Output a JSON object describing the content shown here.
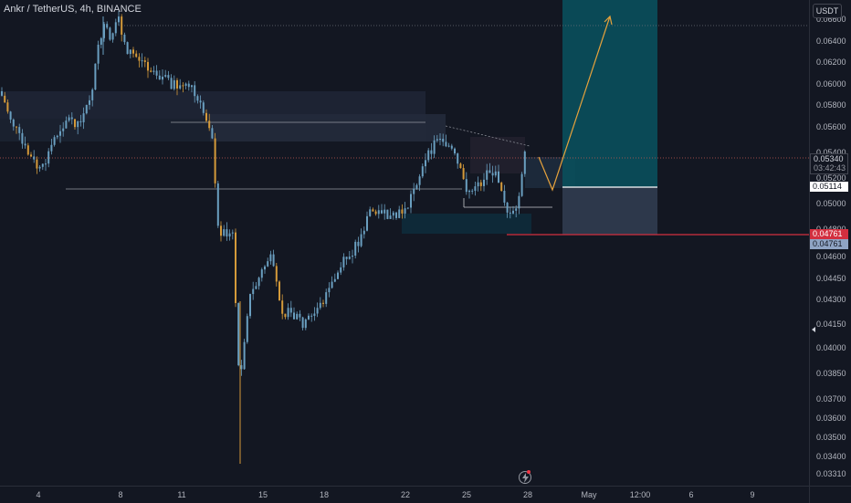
{
  "chart": {
    "title": "Ankr / TetherUS, 4h, BINANCE",
    "currency": "USDT"
  },
  "price_axis": {
    "ticks": [
      "0.06600",
      "0.06400",
      "0.06200",
      "0.06000",
      "0.05800",
      "0.05600",
      "0.05400",
      "0.05200",
      "0.05000",
      "0.04800",
      "0.04600",
      "0.04450",
      "0.04300",
      "0.04150",
      "0.04000",
      "0.03850",
      "0.03700",
      "0.03600",
      "0.03500",
      "0.03400",
      "0.03310"
    ],
    "labels": {
      "current_price": "0.05340",
      "countdown": "03:42:43",
      "target_line": "0.05114",
      "stop_line": "0.04761",
      "stop_line_alt": "0.04761"
    }
  },
  "time_axis": {
    "ticks": [
      "4",
      "8",
      "11",
      "15",
      "18",
      "22",
      "25",
      "28",
      "May",
      "12:00",
      "6",
      "9"
    ]
  },
  "colors": {
    "background": "#131722",
    "candle_blue": "#6a9fc0",
    "candle_orange": "#d49a3a",
    "profit_zone": "#0a4f5c",
    "loss_zone": "#2e3a4e",
    "stop_red": "#d32f3f",
    "projection": "#e6a23c"
  },
  "chart_data": {
    "type": "candlestick",
    "symbol": "ANKRUSDT",
    "interval": "4h",
    "exchange": "BINANCE",
    "unit": "USDT",
    "ylim": [
      0.0331,
      0.066
    ],
    "current_price": 0.0534,
    "annotations": {
      "target_line": 0.05114,
      "stop_line": 0.04761
    },
    "key_points": [
      {
        "label": "swing high",
        "value": 0.0658
      },
      {
        "label": "swing low",
        "value": 0.0335
      }
    ]
  }
}
